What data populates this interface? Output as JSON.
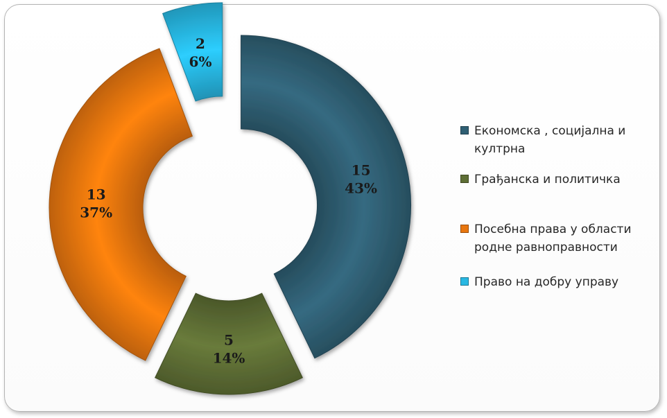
{
  "chart_data": {
    "type": "pie",
    "categories": [
      "Економска , социјална и култрна",
      "Грађанска и политичка",
      "Посебна права у области родне равноправности",
      "Право на добру управу"
    ],
    "values": [
      15,
      5,
      13,
      2
    ],
    "percent_labels": [
      "43%",
      "14%",
      "37%",
      "6%"
    ],
    "colors": [
      "#2f5f73",
      "#5e6e35",
      "#e8760f",
      "#28b8e3"
    ],
    "legend_position": "right"
  }
}
